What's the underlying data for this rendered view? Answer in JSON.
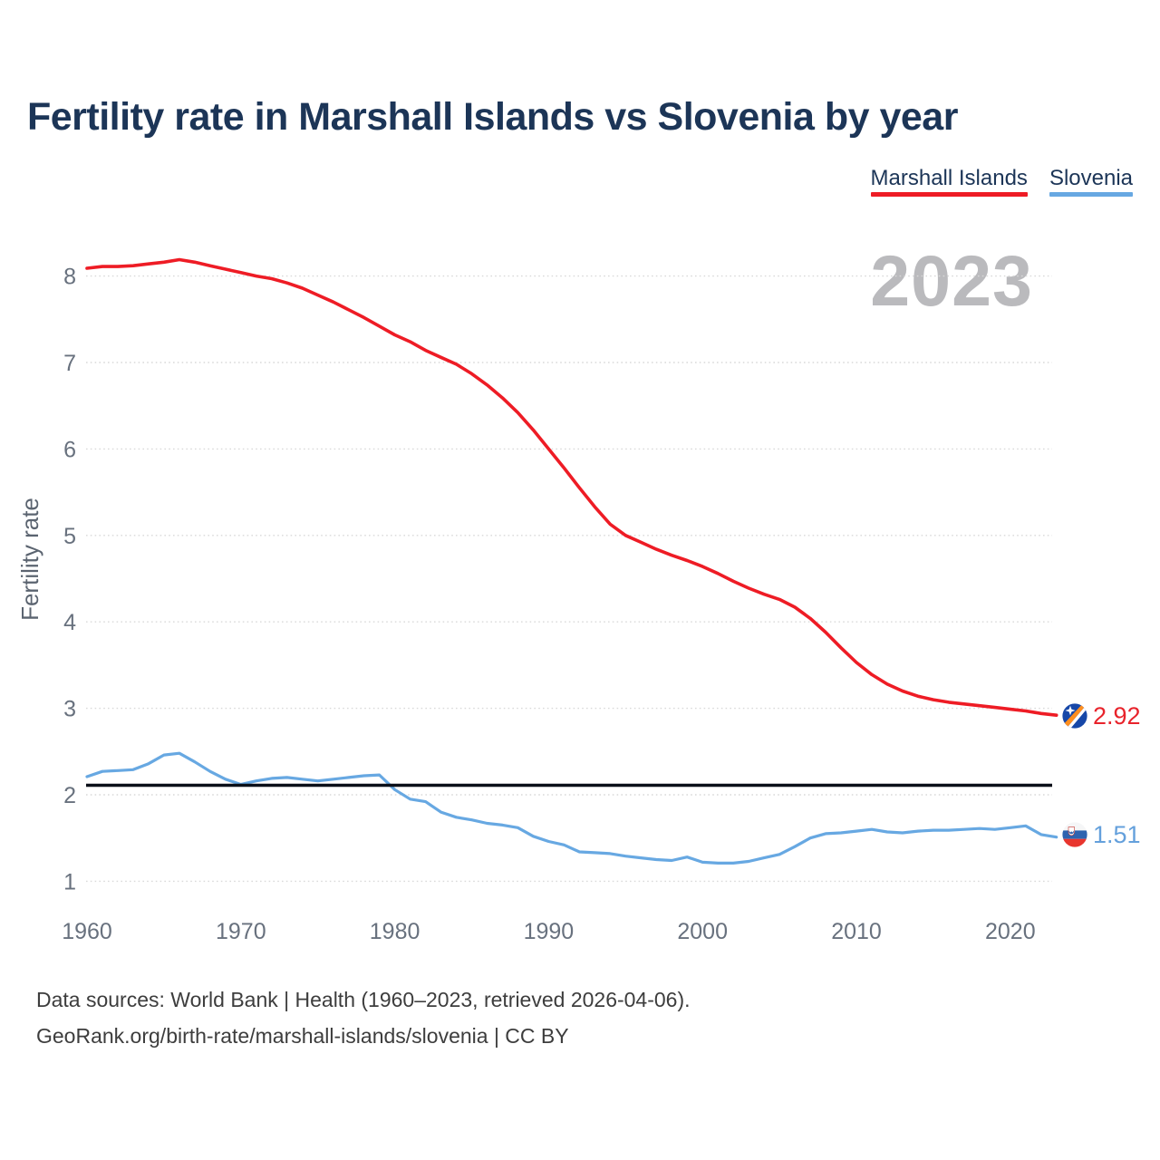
{
  "header": {
    "title": "Fertility rate in Marshall Islands vs Slovenia by year"
  },
  "legend": {
    "items": [
      {
        "label": "Marshall Islands",
        "color": "#ee1c25"
      },
      {
        "label": "Slovenia",
        "color": "#67a8e2"
      }
    ]
  },
  "watermark": "2023",
  "end_labels": {
    "marshall_islands": {
      "value": "2.92",
      "icon": "marshall-islands-flag-icon",
      "color": "#e8232b"
    },
    "slovenia": {
      "value": "1.51",
      "icon": "slovenia-flag-icon",
      "color": "#64a0dc"
    }
  },
  "footer": {
    "line1": "Data sources: World Bank | Health (1960–2023, retrieved 2026-04-06).",
    "line2": "GeoRank.org/birth-rate/marshall-islands/slovenia | CC BY"
  },
  "chart_data": {
    "type": "line",
    "title": "Fertility rate in Marshall Islands vs Slovenia by year",
    "xlabel": "",
    "ylabel": "Fertility rate",
    "grid": true,
    "legend_position": "top-right",
    "xlim": [
      1960,
      2023
    ],
    "ylim": [
      0.8,
      8.45
    ],
    "x_ticks": [
      1960,
      1970,
      1980,
      1990,
      2000,
      2010,
      2020
    ],
    "y_ticks": [
      1,
      2,
      3,
      4,
      5,
      6,
      7,
      8
    ],
    "reference_line": {
      "value": 2.1,
      "color": "#0b0f19"
    },
    "x": [
      1960,
      1961,
      1962,
      1963,
      1964,
      1965,
      1966,
      1967,
      1968,
      1969,
      1970,
      1971,
      1972,
      1973,
      1974,
      1975,
      1976,
      1977,
      1978,
      1979,
      1980,
      1981,
      1982,
      1983,
      1984,
      1985,
      1986,
      1987,
      1988,
      1989,
      1990,
      1991,
      1992,
      1993,
      1994,
      1995,
      1996,
      1997,
      1998,
      1999,
      2000,
      2001,
      2002,
      2003,
      2004,
      2005,
      2006,
      2007,
      2008,
      2009,
      2010,
      2011,
      2012,
      2013,
      2014,
      2015,
      2016,
      2017,
      2018,
      2019,
      2020,
      2021,
      2022,
      2023
    ],
    "series": [
      {
        "name": "Marshall Islands",
        "color": "#ee1c25",
        "end_value_label": "2.92",
        "values": [
          8.09,
          8.11,
          8.11,
          8.12,
          8.14,
          8.16,
          8.19,
          8.16,
          8.12,
          8.08,
          8.04,
          8.0,
          7.97,
          7.92,
          7.86,
          7.78,
          7.7,
          7.61,
          7.52,
          7.42,
          7.32,
          7.24,
          7.14,
          7.06,
          6.98,
          6.87,
          6.74,
          6.59,
          6.42,
          6.22,
          6.0,
          5.78,
          5.55,
          5.33,
          5.13,
          5.0,
          4.92,
          4.84,
          4.77,
          4.71,
          4.64,
          4.56,
          4.47,
          4.39,
          4.32,
          4.26,
          4.17,
          4.04,
          3.88,
          3.7,
          3.53,
          3.39,
          3.28,
          3.2,
          3.14,
          3.1,
          3.07,
          3.05,
          3.03,
          3.01,
          2.99,
          2.97,
          2.94,
          2.92
        ]
      },
      {
        "name": "Slovenia",
        "color": "#67a8e2",
        "end_value_label": "1.51",
        "values": [
          2.21,
          2.27,
          2.28,
          2.29,
          2.36,
          2.46,
          2.48,
          2.38,
          2.27,
          2.18,
          2.12,
          2.16,
          2.19,
          2.2,
          2.18,
          2.16,
          2.18,
          2.2,
          2.22,
          2.23,
          2.06,
          1.95,
          1.92,
          1.8,
          1.74,
          1.71,
          1.67,
          1.65,
          1.62,
          1.52,
          1.46,
          1.42,
          1.34,
          1.33,
          1.32,
          1.29,
          1.27,
          1.25,
          1.24,
          1.28,
          1.22,
          1.21,
          1.21,
          1.23,
          1.27,
          1.31,
          1.4,
          1.5,
          1.55,
          1.56,
          1.58,
          1.6,
          1.57,
          1.56,
          1.58,
          1.59,
          1.59,
          1.6,
          1.61,
          1.6,
          1.62,
          1.64,
          1.54,
          1.51
        ]
      }
    ]
  }
}
